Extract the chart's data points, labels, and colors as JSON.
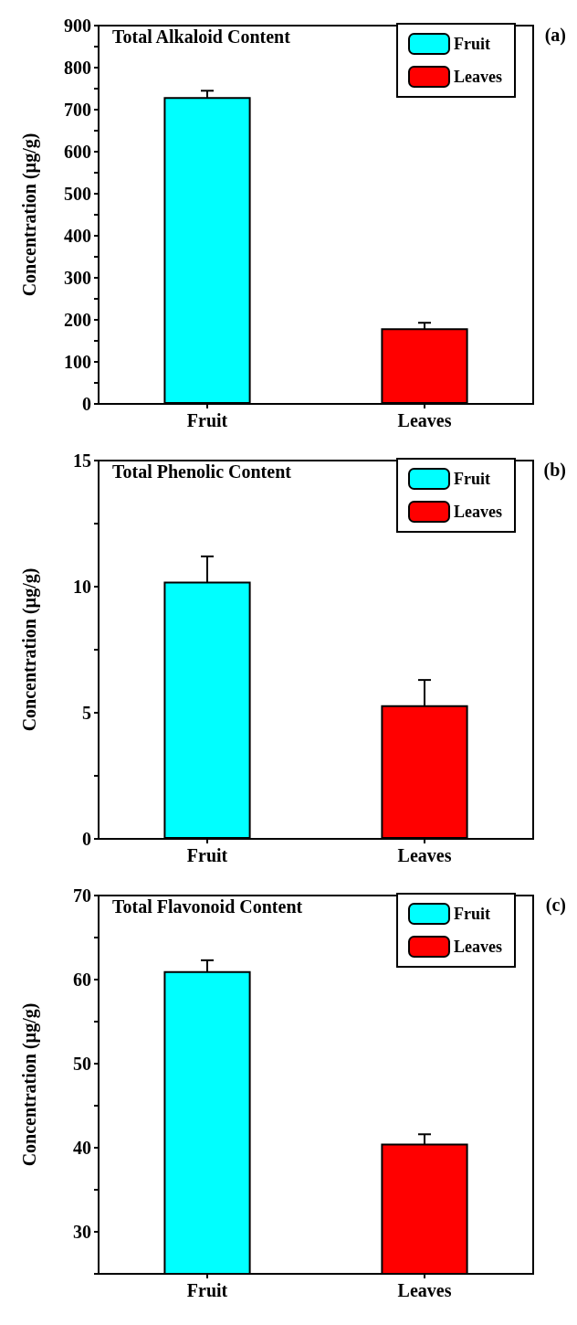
{
  "chart_data": [
    {
      "type": "bar",
      "title": "Total Alkaloid Content",
      "ylabel": "Concentration (µg/g)",
      "annotations": [
        "(a)"
      ],
      "categories": [
        "Fruit",
        "Leaves"
      ],
      "series": [
        {
          "name": "Fruit",
          "color": "#00ffff",
          "values": [
            730,
            null
          ],
          "errors": [
            15,
            null
          ]
        },
        {
          "name": "Leaves",
          "color": "#ff0000",
          "values": [
            null,
            180
          ],
          "errors": [
            null,
            13
          ]
        }
      ],
      "ylim": [
        0,
        900
      ],
      "yticks": [
        0,
        {
          "value": 50,
          "label": null
        },
        100,
        {
          "value": 150,
          "label": null
        },
        200,
        {
          "value": 250,
          "label": null
        },
        300,
        {
          "value": 350,
          "label": null
        },
        400,
        {
          "value": 450,
          "label": null
        },
        500,
        {
          "value": 550,
          "label": null
        },
        600,
        {
          "value": 650,
          "label": null
        },
        700,
        {
          "value": 750,
          "label": null
        },
        800,
        {
          "value": 850,
          "label": null
        },
        900
      ],
      "legend": "top right",
      "grid": false
    },
    {
      "type": "bar",
      "title": "Total Phenolic Content",
      "ylabel": "Concentration (µg/g)",
      "annotations": [
        "(b)"
      ],
      "categories": [
        "Fruit",
        "Leaves"
      ],
      "series": [
        {
          "name": "Fruit",
          "color": "#00ffff",
          "values": [
            10.2,
            null
          ],
          "errors": [
            1.0,
            null
          ]
        },
        {
          "name": "Leaves",
          "color": "#ff0000",
          "values": [
            null,
            5.3
          ],
          "errors": [
            null,
            1.0
          ]
        }
      ],
      "ylim": [
        0,
        15
      ],
      "yticks": [
        0,
        {
          "value": 2.5,
          "label": null
        },
        5,
        {
          "value": 7.5,
          "label": null
        },
        10,
        {
          "value": 12.5,
          "label": null
        },
        15
      ],
      "legend": "top right",
      "grid": false
    },
    {
      "type": "bar",
      "title": "Total Flavonoid Content",
      "ylabel": "Concentration (µg/g)",
      "annotations": [
        "(c)"
      ],
      "categories": [
        "Fruit",
        "Leaves"
      ],
      "series": [
        {
          "name": "Fruit",
          "color": "#00ffff",
          "values": [
            61,
            null
          ],
          "errors": [
            1.3,
            null
          ]
        },
        {
          "name": "Leaves",
          "color": "#ff0000",
          "values": [
            null,
            40.5
          ],
          "errors": [
            null,
            1.1
          ]
        }
      ],
      "ylim": [
        25,
        70
      ],
      "yticks": [
        {
          "value": 25,
          "label": null
        },
        30,
        {
          "value": 35,
          "label": null
        },
        40,
        {
          "value": 45,
          "label": null
        },
        50,
        {
          "value": 55,
          "label": null
        },
        60,
        {
          "value": 65,
          "label": null
        },
        70
      ],
      "legend": "top right",
      "grid": false
    }
  ]
}
